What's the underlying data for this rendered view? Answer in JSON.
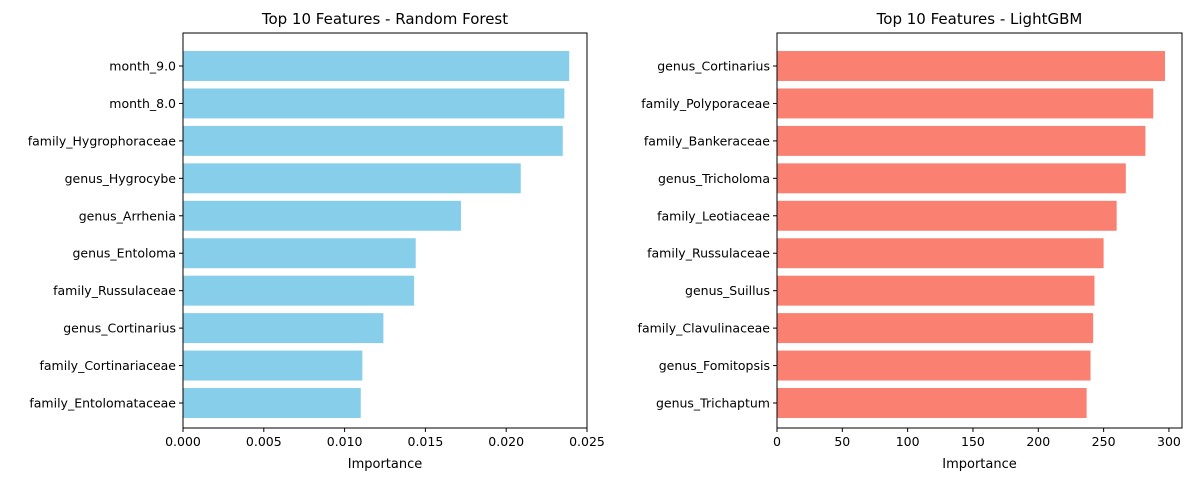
{
  "chart_data": [
    {
      "type": "bar",
      "orientation": "horizontal",
      "title": "Top 10 Features - Random Forest",
      "xlabel": "Importance",
      "ylabel": "",
      "xlim": [
        0,
        0.025
      ],
      "xticks": [
        "0.000",
        "0.005",
        "0.010",
        "0.015",
        "0.020",
        "0.025"
      ],
      "grid": false,
      "color": "#87ceeb",
      "categories": [
        "month_9.0",
        "month_8.0",
        "family_Hygrophoraceae",
        "genus_Hygrocybe",
        "genus_Arrhenia",
        "genus_Entoloma",
        "family_Russulaceae",
        "genus_Cortinarius",
        "family_Cortinariaceae",
        "family_Entolomataceae"
      ],
      "values": [
        0.0239,
        0.0236,
        0.0235,
        0.0209,
        0.0172,
        0.0144,
        0.0143,
        0.0124,
        0.0111,
        0.011
      ]
    },
    {
      "type": "bar",
      "orientation": "horizontal",
      "title": "Top 10 Features - LightGBM",
      "xlabel": "Importance",
      "ylabel": "",
      "xlim": [
        0,
        310
      ],
      "xticks": [
        "0",
        "50",
        "100",
        "150",
        "200",
        "250",
        "300"
      ],
      "grid": false,
      "color": "#fa8072",
      "categories": [
        "genus_Cortinarius",
        "family_Polyporaceae",
        "family_Bankeraceae",
        "genus_Tricholoma",
        "family_Leotiaceae",
        "family_Russulaceae",
        "genus_Suillus",
        "family_Clavulinaceae",
        "genus_Fomitopsis",
        "genus_Trichaptum"
      ],
      "values": [
        297,
        288,
        282,
        267,
        260,
        250,
        243,
        242,
        240,
        237
      ]
    }
  ]
}
